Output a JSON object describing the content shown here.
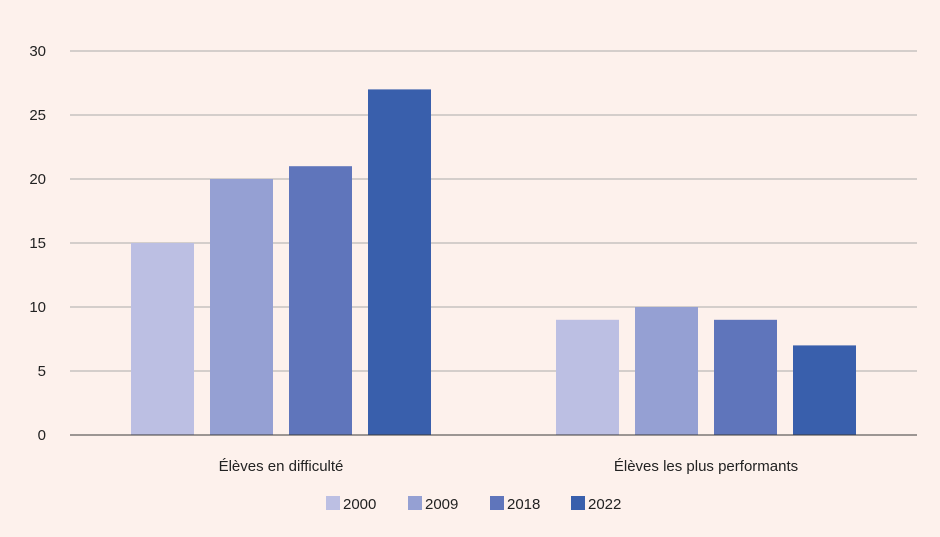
{
  "background": "#fdf1ec",
  "chart_data": {
    "type": "bar",
    "title": "",
    "xlabel": "",
    "ylabel": "",
    "categories": [
      "Élèves en difficulté",
      "Élèves les plus performants"
    ],
    "series": [
      {
        "name": "2000",
        "color": "#bcbfe3",
        "values": [
          15,
          9
        ]
      },
      {
        "name": "2009",
        "color": "#95a0d3",
        "values": [
          20,
          10
        ]
      },
      {
        "name": "2018",
        "color": "#5f75bb",
        "values": [
          21,
          9
        ]
      },
      {
        "name": "2022",
        "color": "#395fac",
        "values": [
          27,
          7
        ]
      }
    ],
    "ylim": [
      0,
      30
    ],
    "yticks": [
      0,
      5,
      10,
      15,
      20,
      25,
      30
    ],
    "grid": true,
    "legend_position": "bottom-center"
  }
}
